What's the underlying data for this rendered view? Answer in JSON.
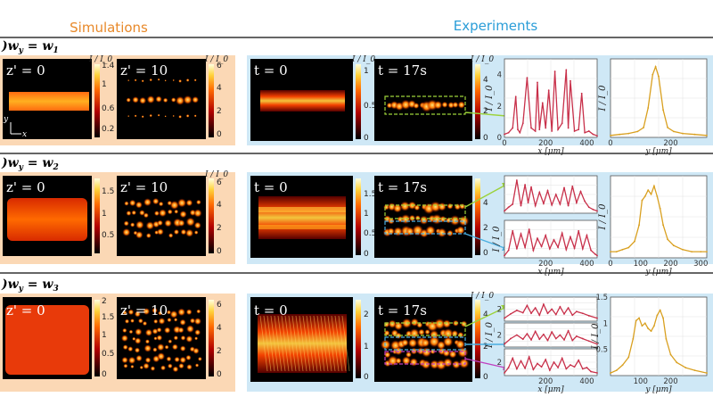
{
  "headers": {
    "simulations": "Simulations",
    "experiments": "Experiments"
  },
  "colors": {
    "sim_bg": "#fbd8b5",
    "exp_bg": "#cfe8f6",
    "sim_header": "#e8892a",
    "exp_header": "#2a9dd8",
    "red_curve": "#c8304a",
    "gold_curve": "#d9a020"
  },
  "rows": [
    {
      "label": ")w_y = w_1",
      "sim": {
        "map0": {
          "time_label": "z' = 0",
          "cbar_title": "I / I_0",
          "ticks": [
            "1.4",
            "1",
            "0.6",
            "0.2"
          ]
        },
        "map1": {
          "time_label": "z' = 10",
          "cbar_title": "I / I_0",
          "ticks": [
            "6",
            "4",
            "2",
            "0"
          ]
        }
      },
      "exp": {
        "map0": {
          "time_label": "t = 0",
          "cbar_title": "I / I_0",
          "ticks": [
            "1",
            "0.5",
            "0"
          ]
        },
        "map1": {
          "time_label": "t = 17s",
          "cbar_title": "I / I_0",
          "ticks": [
            "4",
            "2",
            "0"
          ]
        }
      },
      "axis_label": {
        "x": "x",
        "y": "y"
      }
    },
    {
      "label": ")w_y = w_2",
      "sim": {
        "map0": {
          "time_label": "z' = 0",
          "cbar_title": "",
          "ticks": [
            "1.5",
            "1",
            "0.5"
          ]
        },
        "map1": {
          "time_label": "z' = 10",
          "cbar_title": "I / I_0",
          "ticks": [
            "6",
            "4",
            "2",
            "0"
          ]
        }
      },
      "exp": {
        "map0": {
          "time_label": "t = 0",
          "cbar_title": "",
          "ticks": [
            "1.5",
            "1",
            "0.5",
            "0"
          ]
        },
        "map1": {
          "time_label": "t = 17s",
          "cbar_title": "",
          "ticks": [
            "4",
            "2",
            "0"
          ]
        }
      }
    },
    {
      "label": ")w_y = w_3",
      "sim": {
        "map0": {
          "time_label": "z' = 0",
          "cbar_title": "",
          "ticks": [
            "2",
            "1.5",
            "1",
            "0.5",
            "0"
          ]
        },
        "map1": {
          "time_label": "z' = 10",
          "cbar_title": "",
          "ticks": [
            "6",
            "4",
            "2",
            "0"
          ]
        }
      },
      "exp": {
        "map0": {
          "time_label": "t = 0",
          "cbar_title": "",
          "ticks": [
            "2",
            "1",
            "0"
          ]
        },
        "map1": {
          "time_label": "t = 17s",
          "cbar_title": "I / I_0",
          "ticks": [
            "4",
            "2",
            "0"
          ]
        }
      }
    }
  ],
  "chart_data": [
    {
      "type": "line",
      "row": 1,
      "series_name": "x profile",
      "ylabel": "I / I_0",
      "xlabel": "x [μm]",
      "xlim": [
        0,
        450
      ],
      "ylim": [
        0,
        5
      ],
      "xticks": [
        "0",
        "200",
        "400"
      ],
      "yticks": [
        "0",
        "2",
        "4"
      ],
      "x": [
        0,
        20,
        40,
        55,
        65,
        75,
        90,
        110,
        130,
        150,
        160,
        170,
        185,
        200,
        215,
        230,
        245,
        260,
        280,
        300,
        310,
        320,
        340,
        360,
        375,
        390,
        410,
        430,
        450
      ],
      "y": [
        0.2,
        0.3,
        0.6,
        2.6,
        0.5,
        0.3,
        0.9,
        3.8,
        0.6,
        0.4,
        3.5,
        0.5,
        2.2,
        0.6,
        3.0,
        0.4,
        4.2,
        0.5,
        0.9,
        4.3,
        0.6,
        3.6,
        0.4,
        0.5,
        2.8,
        0.3,
        0.4,
        0.2,
        0.1
      ]
    },
    {
      "type": "line",
      "row": 1,
      "series_name": "y profile",
      "ylabel": "I / I_0",
      "xlabel": "y [μm]",
      "xlim": [
        0,
        320
      ],
      "ylim": [
        0,
        4
      ],
      "xticks": [
        "0",
        "200"
      ],
      "yticks": [],
      "x": [
        0,
        30,
        60,
        90,
        110,
        125,
        140,
        150,
        160,
        175,
        190,
        210,
        240,
        280,
        320
      ],
      "y": [
        0.1,
        0.15,
        0.2,
        0.3,
        0.5,
        1.5,
        3.2,
        3.6,
        3.1,
        1.4,
        0.5,
        0.3,
        0.2,
        0.15,
        0.1
      ]
    },
    {
      "type": "line",
      "row": 2,
      "series_name": "x profile top",
      "ylabel": "",
      "xlabel": "",
      "xlim": [
        0,
        450
      ],
      "ylim": [
        0,
        5
      ],
      "xticks": [],
      "yticks": [],
      "x": [
        0,
        20,
        40,
        60,
        80,
        100,
        115,
        130,
        150,
        170,
        190,
        210,
        230,
        250,
        270,
        290,
        310,
        330,
        350,
        370,
        390,
        410,
        430,
        450
      ],
      "y": [
        0.3,
        0.8,
        1.2,
        4.4,
        1.0,
        3.8,
        1.4,
        3.5,
        1.0,
        2.8,
        1.3,
        3.0,
        1.1,
        2.5,
        1.2,
        3.4,
        1.0,
        3.6,
        1.4,
        2.9,
        1.6,
        0.8,
        0.5,
        0.3
      ]
    },
    {
      "type": "line",
      "row": 2,
      "series_name": "x profile bottom",
      "ylabel": "I / I_0",
      "xlabel": "x [μm]",
      "xlim": [
        0,
        450
      ],
      "ylim": [
        0,
        5
      ],
      "xticks": [
        "200",
        "400"
      ],
      "yticks": [],
      "x": [
        0,
        20,
        40,
        60,
        80,
        100,
        120,
        140,
        160,
        180,
        200,
        220,
        240,
        260,
        280,
        300,
        320,
        340,
        360,
        380,
        400,
        420,
        440,
        450
      ],
      "y": [
        0.3,
        1.0,
        3.6,
        1.2,
        3.2,
        1.4,
        3.8,
        1.0,
        2.6,
        1.5,
        3.0,
        1.2,
        2.4,
        1.4,
        3.3,
        1.1,
        2.8,
        1.3,
        3.6,
        1.2,
        3.0,
        1.0,
        0.5,
        0.3
      ]
    },
    {
      "type": "line",
      "row": 2,
      "series_name": "y profile",
      "ylabel": "I / I_0",
      "xlabel": "y [μm]",
      "xlim": [
        0,
        320
      ],
      "ylim": [
        0,
        4
      ],
      "xticks": [
        "0",
        "100",
        "200",
        "300"
      ],
      "yticks": [],
      "x": [
        0,
        20,
        40,
        60,
        80,
        95,
        105,
        115,
        125,
        135,
        145,
        155,
        165,
        175,
        190,
        210,
        240,
        270,
        300,
        320
      ],
      "y": [
        0.3,
        0.3,
        0.4,
        0.5,
        0.8,
        1.6,
        2.8,
        3.0,
        3.3,
        3.1,
        3.5,
        3.0,
        2.4,
        1.6,
        0.9,
        0.6,
        0.4,
        0.3,
        0.3,
        0.3
      ]
    },
    {
      "type": "line",
      "row": 3,
      "series_name": "x profile 1",
      "ylabel": "",
      "xlabel": "",
      "xlim": [
        0,
        450
      ],
      "ylim": [
        0,
        4
      ],
      "xticks": [],
      "yticks": [
        "2"
      ],
      "x": [
        0,
        30,
        60,
        90,
        110,
        130,
        150,
        170,
        190,
        210,
        230,
        250,
        270,
        290,
        310,
        330,
        350,
        380,
        410,
        450
      ],
      "y": [
        0.5,
        1.2,
        1.8,
        1.4,
        2.6,
        1.3,
        2.2,
        1.0,
        2.8,
        1.3,
        2.0,
        1.1,
        2.4,
        1.2,
        2.2,
        1.0,
        1.6,
        1.3,
        0.9,
        0.5
      ]
    },
    {
      "type": "line",
      "row": 3,
      "series_name": "x profile 2",
      "ylabel": "I / I_0",
      "xlabel": "",
      "xlim": [
        0,
        450
      ],
      "ylim": [
        0,
        4
      ],
      "xticks": [],
      "yticks": [
        "2"
      ],
      "x": [
        0,
        30,
        60,
        90,
        110,
        130,
        150,
        170,
        190,
        210,
        230,
        250,
        270,
        290,
        310,
        330,
        350,
        380,
        410,
        450
      ],
      "y": [
        0.5,
        1.4,
        2.0,
        1.3,
        2.2,
        1.2,
        2.6,
        1.3,
        2.1,
        1.1,
        2.5,
        1.4,
        2.0,
        1.2,
        2.7,
        1.1,
        1.8,
        1.4,
        1.0,
        0.5
      ]
    },
    {
      "type": "line",
      "row": 3,
      "series_name": "x profile 3",
      "ylabel": "",
      "xlabel": "x [μm]",
      "xlim": [
        0,
        450
      ],
      "ylim": [
        0,
        4
      ],
      "xticks": [
        "200",
        "400"
      ],
      "yticks": [
        "2"
      ],
      "x": [
        0,
        20,
        40,
        60,
        80,
        100,
        120,
        140,
        160,
        180,
        200,
        220,
        240,
        260,
        280,
        300,
        320,
        340,
        360,
        380,
        400,
        420,
        450
      ],
      "y": [
        0.4,
        1.2,
        2.6,
        1.0,
        2.2,
        1.1,
        2.8,
        0.9,
        1.8,
        1.3,
        2.4,
        0.8,
        2.0,
        1.2,
        2.6,
        1.0,
        1.6,
        1.3,
        2.3,
        1.0,
        1.2,
        0.6,
        0.4
      ]
    },
    {
      "type": "line",
      "row": 3,
      "series_name": "y profile",
      "ylabel": "I / I_0",
      "xlabel": "y [μm]",
      "xlim": [
        0,
        320
      ],
      "ylim": [
        0,
        1.5
      ],
      "xticks": [
        "100",
        "200"
      ],
      "yticks": [
        "1.5",
        "1",
        "0.5"
      ],
      "x": [
        0,
        20,
        40,
        60,
        75,
        85,
        95,
        105,
        115,
        125,
        135,
        145,
        155,
        165,
        175,
        185,
        200,
        220,
        250,
        280,
        320
      ],
      "y": [
        0.05,
        0.1,
        0.2,
        0.35,
        0.7,
        1.05,
        1.1,
        0.95,
        1.0,
        0.9,
        0.85,
        0.95,
        1.15,
        1.25,
        1.1,
        0.7,
        0.4,
        0.25,
        0.15,
        0.1,
        0.05
      ]
    }
  ]
}
